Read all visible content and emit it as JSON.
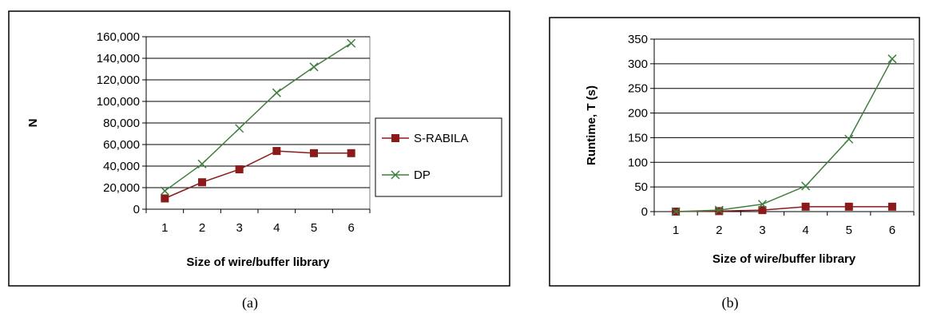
{
  "colors": {
    "s_rabila": "#8b1a1a",
    "dp": "#3f7f3f",
    "grid": "#000000"
  },
  "chart_data": [
    {
      "type": "line",
      "caption": "(a)",
      "categories": [
        "1",
        "2",
        "3",
        "4",
        "5",
        "6"
      ],
      "y_ticks": [
        "0",
        "20,000",
        "40,000",
        "60,000",
        "80,000",
        "100,000",
        "120,000",
        "140,000",
        "160,000"
      ],
      "ylim": [
        0,
        160000
      ],
      "xlabel": "Size of wire/buffer library",
      "ylabel": "N",
      "grid": "horizontal",
      "legend_position": "right",
      "series": [
        {
          "name": "S-RABILA",
          "marker": "square",
          "color": "#8b1a1a",
          "values": [
            10000,
            25000,
            37000,
            54000,
            52000,
            52000
          ]
        },
        {
          "name": "DP",
          "marker": "x",
          "color": "#3f7f3f",
          "values": [
            17000,
            42000,
            75000,
            108000,
            132000,
            154000
          ]
        }
      ]
    },
    {
      "type": "line",
      "caption": "(b)",
      "categories": [
        "1",
        "2",
        "3",
        "4",
        "5",
        "6"
      ],
      "y_ticks": [
        "0",
        "50",
        "100",
        "150",
        "200",
        "250",
        "300",
        "350"
      ],
      "ylim": [
        0,
        350
      ],
      "xlabel": "Size of wire/buffer library",
      "ylabel": "Runtime, T (s)",
      "grid": "horizontal",
      "legend_position": "none",
      "series": [
        {
          "marker": "square",
          "color": "#8b1a1a",
          "values": [
            0,
            1,
            3,
            10,
            10,
            10
          ]
        },
        {
          "marker": "x",
          "color": "#3f7f3f",
          "values": [
            0,
            3,
            15,
            52,
            147,
            310
          ]
        }
      ]
    }
  ]
}
